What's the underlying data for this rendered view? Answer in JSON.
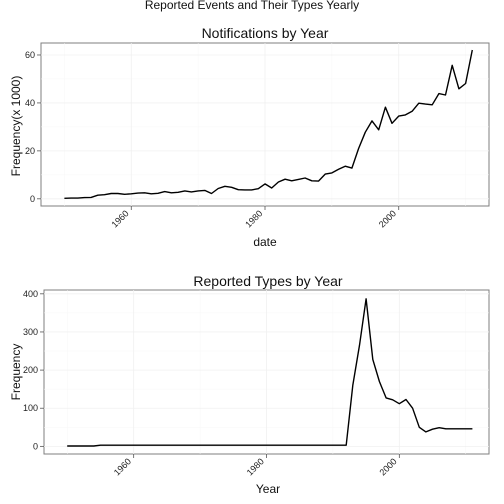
{
  "figure_title": "Reported Events and Their Types Yearly",
  "chart_data": [
    {
      "type": "line",
      "title": "Notifications by Year",
      "xlabel": "date",
      "ylabel": "Frequency(x 1000)",
      "xlim": [
        1946.5,
        2013.5
      ],
      "ylim": [
        -3,
        65
      ],
      "x_ticks": [
        1960,
        1980,
        2000
      ],
      "y_ticks": [
        0,
        20,
        40,
        60
      ],
      "grid": true,
      "series": [
        {
          "x": [
            1950,
            1951,
            1952,
            1953,
            1954,
            1955,
            1956,
            1957,
            1958,
            1959,
            1960,
            1961,
            1962,
            1963,
            1964,
            1965,
            1966,
            1967,
            1968,
            1969,
            1970,
            1971,
            1972,
            1973,
            1974,
            1975,
            1976,
            1977,
            1978,
            1979,
            1980,
            1981,
            1982,
            1983,
            1984,
            1985,
            1986,
            1987,
            1988,
            1989,
            1990,
            1991,
            1992,
            1993,
            1994,
            1995,
            1996,
            1997,
            1998,
            1999,
            2000,
            2001,
            2002,
            2003,
            2004,
            2005,
            2006,
            2007,
            2008,
            2009,
            2010,
            2011
          ],
          "values": [
            0.2,
            0.3,
            0.3,
            0.5,
            0.6,
            1.5,
            1.7,
            2.2,
            2.2,
            1.9,
            2.1,
            2.4,
            2.5,
            2.1,
            2.3,
            3.0,
            2.5,
            2.7,
            3.3,
            2.9,
            3.3,
            3.5,
            2.2,
            4.3,
            5.2,
            4.8,
            3.8,
            3.7,
            3.7,
            4.2,
            6.2,
            4.5,
            7.0,
            8.2,
            7.5,
            8.1,
            8.7,
            7.5,
            7.4,
            10.3,
            10.8,
            12.3,
            13.6,
            12.8,
            21.0,
            27.8,
            32.5,
            28.8,
            38.2,
            31.5,
            34.5,
            35.0,
            36.5,
            39.9,
            39.5,
            39.2,
            43.9,
            43.3,
            55.7,
            45.9,
            48.1,
            62.1
          ]
        }
      ]
    },
    {
      "type": "line",
      "title": "Reported Types by Year",
      "xlabel": "Year",
      "ylabel": "Frequency",
      "xlim": [
        1946.5,
        2013.5
      ],
      "ylim": [
        -20,
        410
      ],
      "x_ticks": [
        1960,
        1980,
        2000
      ],
      "y_ticks": [
        0,
        100,
        200,
        300,
        400
      ],
      "grid": true,
      "series": [
        {
          "x": [
            1950,
            1954,
            1955,
            1960,
            1970,
            1980,
            1990,
            1992,
            1993,
            1994,
            1995,
            1996,
            1997,
            1998,
            1999,
            2000,
            2001,
            2002,
            2003,
            2004,
            2005,
            2006,
            2007,
            2008,
            2009,
            2010,
            2011
          ],
          "values": [
            1,
            1,
            3,
            3,
            3,
            3,
            3,
            3,
            160,
            265,
            387,
            228,
            170,
            127,
            122,
            112,
            123,
            100,
            50,
            38,
            45,
            49,
            46,
            46,
            46,
            46,
            46
          ]
        }
      ]
    }
  ]
}
